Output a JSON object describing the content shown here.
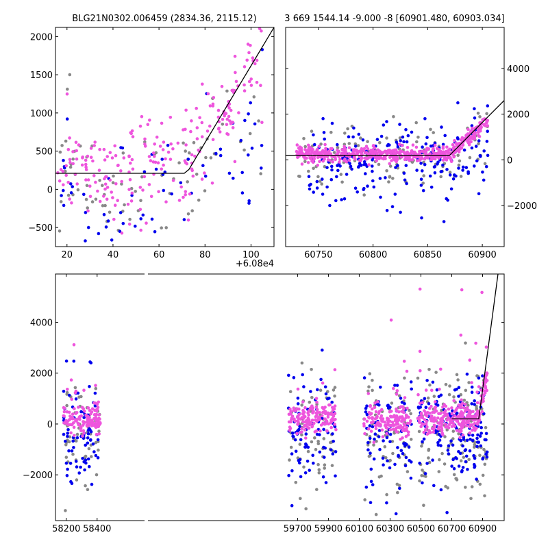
{
  "chart_data": [
    {
      "id": "zoom_left",
      "type": "scatter",
      "title": "BLG21N0302.006459 (2834.36, 2115.12)",
      "x_offset_label": "+6.08e4",
      "x_offset": 60800,
      "xlim": [
        60815,
        60910
      ],
      "ylim": [
        -750,
        2120
      ],
      "x_ticks": [
        20,
        40,
        60,
        80,
        100
      ],
      "y_ticks": [
        -500,
        0,
        500,
        1000,
        1500,
        2000
      ],
      "y_axis_side": "left",
      "model_line": [
        [
          60815,
          210
        ],
        [
          60871,
          210
        ],
        [
          60873,
          260
        ],
        [
          60910,
          2120
        ]
      ],
      "series": [
        {
          "name": "grey",
          "color": "#888888",
          "x_range": [
            60815,
            60905
          ],
          "y_center": 150,
          "y_spread": 380,
          "count": 80,
          "seed": 11
        },
        {
          "name": "blue",
          "color": "#0000ee",
          "x_range": [
            60815,
            60905
          ],
          "y_center": 50,
          "y_spread": 420,
          "count": 70,
          "seed": 23
        },
        {
          "name": "pink",
          "color": "#ee55dd",
          "x_range": [
            60815,
            60905
          ],
          "y_center": 250,
          "y_spread": 330,
          "count": 230,
          "seed": 37
        }
      ]
    },
    {
      "id": "zoom_right",
      "type": "scatter",
      "title": "3 669 1544.14 -9.000 -8 [60901.480, 60903.034]",
      "xlim": [
        60720,
        60920
      ],
      "ylim": [
        -3800,
        5800
      ],
      "x_ticks": [
        60750,
        60800,
        60850,
        60900
      ],
      "y_ticks": [
        -2000,
        0,
        2000,
        4000
      ],
      "y_axis_side": "right",
      "model_line": [
        [
          60720,
          200
        ],
        [
          60870,
          200
        ],
        [
          60920,
          2600
        ]
      ],
      "series": [
        {
          "name": "grey",
          "color": "#888888",
          "x_range": [
            60730,
            60905
          ],
          "y_center": 100,
          "y_spread": 700,
          "count": 120,
          "seed": 41
        },
        {
          "name": "blue",
          "color": "#0000ee",
          "x_range": [
            60740,
            60905
          ],
          "y_center": -150,
          "y_spread": 900,
          "count": 220,
          "seed": 53
        },
        {
          "name": "pink",
          "color": "#ee55dd",
          "x_range": [
            60730,
            60905
          ],
          "y_center": 250,
          "y_spread": 150,
          "count": 520,
          "seed": 67
        }
      ]
    },
    {
      "id": "full_lightcurve",
      "type": "scatter",
      "title": "",
      "xlim": [
        58130,
        61040
      ],
      "ylim": [
        -3800,
        5900
      ],
      "axis_break": [
        58440,
        59560
      ],
      "x_ticks": [
        58200,
        58400,
        59700,
        59900,
        60100,
        60300,
        60500,
        60700,
        60900
      ],
      "y_ticks": [
        -2000,
        0,
        2000,
        4000
      ],
      "y_axis_side": "left",
      "model_line": [
        [
          60700,
          200
        ],
        [
          60875,
          200
        ],
        [
          61000,
          5900
        ]
      ],
      "seasons": [
        {
          "x_range": [
            58180,
            58420
          ],
          "count": 260
        },
        {
          "x_range": [
            59640,
            59950
          ],
          "count": 300
        },
        {
          "x_range": [
            60130,
            60440
          ],
          "count": 300
        },
        {
          "x_range": [
            60480,
            60770
          ],
          "count": 300
        },
        {
          "x_range": [
            60755,
            60930
          ],
          "count": 260
        }
      ],
      "series": [
        {
          "name": "grey",
          "color": "#888888",
          "y_center": -300,
          "y_spread": 1200,
          "frac": 0.22,
          "seed": 71
        },
        {
          "name": "blue",
          "color": "#0000ee",
          "y_center": -250,
          "y_spread": 1100,
          "frac": 0.28,
          "seed": 83
        },
        {
          "name": "pink",
          "color": "#ee55dd",
          "y_center": 150,
          "y_spread": 300,
          "frac": 0.5,
          "seed": 97
        }
      ]
    }
  ]
}
